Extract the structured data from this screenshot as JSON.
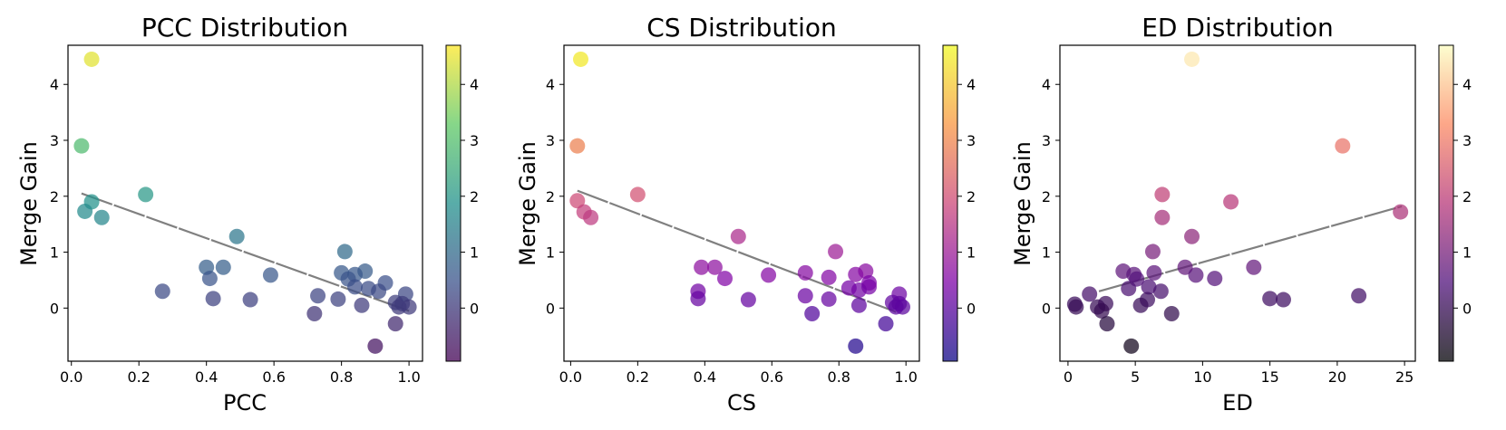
{
  "chart_data": [
    {
      "type": "scatter",
      "title": "PCC Distribution",
      "xlabel": "PCC",
      "ylabel": "Merge Gain",
      "xlim": [
        -0.01,
        1.04
      ],
      "ylim": [
        -0.95,
        4.7
      ],
      "xticks": [
        "0.0",
        "0.2",
        "0.4",
        "0.6",
        "0.8",
        "1.0"
      ],
      "yticks": [
        "0",
        "1",
        "2",
        "3",
        "4"
      ],
      "colorbar_ticks": [
        "0",
        "1",
        "2",
        "3",
        "4"
      ],
      "colormap": "viridis",
      "grid": false,
      "trendline": {
        "style": "dashed",
        "color": "#808080",
        "x": [
          0.03,
          1.0
        ],
        "y": [
          2.05,
          -0.05
        ]
      },
      "points": [
        {
          "x": 0.06,
          "y": 4.45
        },
        {
          "x": 0.03,
          "y": 2.9
        },
        {
          "x": 0.22,
          "y": 2.03
        },
        {
          "x": 0.06,
          "y": 1.9
        },
        {
          "x": 0.04,
          "y": 1.73
        },
        {
          "x": 0.09,
          "y": 1.62
        },
        {
          "x": 0.49,
          "y": 1.28
        },
        {
          "x": 0.81,
          "y": 1.01
        },
        {
          "x": 0.4,
          "y": 0.73
        },
        {
          "x": 0.45,
          "y": 0.73
        },
        {
          "x": 0.87,
          "y": 0.66
        },
        {
          "x": 0.8,
          "y": 0.63
        },
        {
          "x": 0.59,
          "y": 0.59
        },
        {
          "x": 0.84,
          "y": 0.6
        },
        {
          "x": 0.82,
          "y": 0.52
        },
        {
          "x": 0.41,
          "y": 0.53
        },
        {
          "x": 0.93,
          "y": 0.45
        },
        {
          "x": 0.84,
          "y": 0.38
        },
        {
          "x": 0.88,
          "y": 0.35
        },
        {
          "x": 0.27,
          "y": 0.3
        },
        {
          "x": 0.91,
          "y": 0.3
        },
        {
          "x": 0.99,
          "y": 0.25
        },
        {
          "x": 0.73,
          "y": 0.22
        },
        {
          "x": 0.42,
          "y": 0.17
        },
        {
          "x": 0.53,
          "y": 0.15
        },
        {
          "x": 0.79,
          "y": 0.16
        },
        {
          "x": 0.96,
          "y": 0.1
        },
        {
          "x": 0.98,
          "y": 0.08
        },
        {
          "x": 0.97,
          "y": 0.02
        },
        {
          "x": 1.0,
          "y": 0.02
        },
        {
          "x": 0.86,
          "y": 0.05
        },
        {
          "x": 0.72,
          "y": -0.1
        },
        {
          "x": 0.96,
          "y": -0.28
        },
        {
          "x": 0.9,
          "y": -0.68
        }
      ]
    },
    {
      "type": "scatter",
      "title": "CS Distribution",
      "xlabel": "CS",
      "ylabel": "Merge Gain",
      "xlim": [
        -0.02,
        1.04
      ],
      "ylim": [
        -0.95,
        4.7
      ],
      "xticks": [
        "0.0",
        "0.2",
        "0.4",
        "0.6",
        "0.8",
        "1.0"
      ],
      "yticks": [
        "0",
        "1",
        "2",
        "3",
        "4"
      ],
      "colorbar_ticks": [
        "0",
        "1",
        "2",
        "3",
        "4"
      ],
      "colormap": "plasma",
      "grid": false,
      "trendline": {
        "style": "dashed",
        "color": "#808080",
        "x": [
          0.02,
          0.97
        ],
        "y": [
          2.1,
          -0.07
        ]
      },
      "points": [
        {
          "x": 0.03,
          "y": 4.45
        },
        {
          "x": 0.02,
          "y": 2.9
        },
        {
          "x": 0.2,
          "y": 2.03
        },
        {
          "x": 0.02,
          "y": 1.92
        },
        {
          "x": 0.04,
          "y": 1.72
        },
        {
          "x": 0.06,
          "y": 1.62
        },
        {
          "x": 0.5,
          "y": 1.28
        },
        {
          "x": 0.79,
          "y": 1.01
        },
        {
          "x": 0.39,
          "y": 0.73
        },
        {
          "x": 0.43,
          "y": 0.73
        },
        {
          "x": 0.88,
          "y": 0.66
        },
        {
          "x": 0.7,
          "y": 0.63
        },
        {
          "x": 0.59,
          "y": 0.59
        },
        {
          "x": 0.85,
          "y": 0.6
        },
        {
          "x": 0.77,
          "y": 0.55
        },
        {
          "x": 0.46,
          "y": 0.53
        },
        {
          "x": 0.89,
          "y": 0.45
        },
        {
          "x": 0.83,
          "y": 0.36
        },
        {
          "x": 0.89,
          "y": 0.38
        },
        {
          "x": 0.38,
          "y": 0.3
        },
        {
          "x": 0.86,
          "y": 0.32
        },
        {
          "x": 0.98,
          "y": 0.25
        },
        {
          "x": 0.7,
          "y": 0.22
        },
        {
          "x": 0.38,
          "y": 0.17
        },
        {
          "x": 0.53,
          "y": 0.15
        },
        {
          "x": 0.77,
          "y": 0.16
        },
        {
          "x": 0.96,
          "y": 0.1
        },
        {
          "x": 0.98,
          "y": 0.08
        },
        {
          "x": 0.97,
          "y": 0.02
        },
        {
          "x": 0.99,
          "y": 0.02
        },
        {
          "x": 0.86,
          "y": 0.05
        },
        {
          "x": 0.72,
          "y": -0.1
        },
        {
          "x": 0.94,
          "y": -0.28
        },
        {
          "x": 0.85,
          "y": -0.68
        }
      ]
    },
    {
      "type": "scatter",
      "title": "ED Distribution",
      "xlabel": "ED",
      "ylabel": "Merge Gain",
      "xlim": [
        -0.6,
        25.8
      ],
      "ylim": [
        -0.95,
        4.7
      ],
      "xticks": [
        "0",
        "5",
        "10",
        "15",
        "20",
        "25"
      ],
      "yticks": [
        "0",
        "1",
        "2",
        "3",
        "4"
      ],
      "colorbar_ticks": [
        "0",
        "1",
        "2",
        "3",
        "4"
      ],
      "colormap": "magma",
      "grid": false,
      "trendline": {
        "style": "dashed",
        "color": "#808080",
        "x": [
          2.3,
          24.8
        ],
        "y": [
          0.3,
          1.82
        ]
      },
      "points": [
        {
          "x": 9.2,
          "y": 4.45
        },
        {
          "x": 20.4,
          "y": 2.9
        },
        {
          "x": 7.0,
          "y": 2.03
        },
        {
          "x": 12.1,
          "y": 1.9
        },
        {
          "x": 24.7,
          "y": 1.72
        },
        {
          "x": 7.0,
          "y": 1.62
        },
        {
          "x": 9.2,
          "y": 1.28
        },
        {
          "x": 6.3,
          "y": 1.01
        },
        {
          "x": 8.7,
          "y": 0.73
        },
        {
          "x": 13.8,
          "y": 0.73
        },
        {
          "x": 4.1,
          "y": 0.66
        },
        {
          "x": 6.4,
          "y": 0.63
        },
        {
          "x": 9.5,
          "y": 0.59
        },
        {
          "x": 4.9,
          "y": 0.6
        },
        {
          "x": 5.1,
          "y": 0.52
        },
        {
          "x": 10.9,
          "y": 0.53
        },
        {
          "x": 4.5,
          "y": 0.35
        },
        {
          "x": 6.0,
          "y": 0.38
        },
        {
          "x": 6.9,
          "y": 0.3
        },
        {
          "x": 1.6,
          "y": 0.25
        },
        {
          "x": 21.6,
          "y": 0.22
        },
        {
          "x": 5.9,
          "y": 0.15
        },
        {
          "x": 15.0,
          "y": 0.17
        },
        {
          "x": 16.0,
          "y": 0.15
        },
        {
          "x": 0.5,
          "y": 0.07
        },
        {
          "x": 2.8,
          "y": 0.08
        },
        {
          "x": 5.4,
          "y": 0.05
        },
        {
          "x": 0.6,
          "y": 0.02
        },
        {
          "x": 2.2,
          "y": 0.02
        },
        {
          "x": 2.5,
          "y": -0.05
        },
        {
          "x": 7.7,
          "y": -0.1
        },
        {
          "x": 2.9,
          "y": -0.28
        },
        {
          "x": 4.7,
          "y": -0.68
        }
      ]
    }
  ]
}
